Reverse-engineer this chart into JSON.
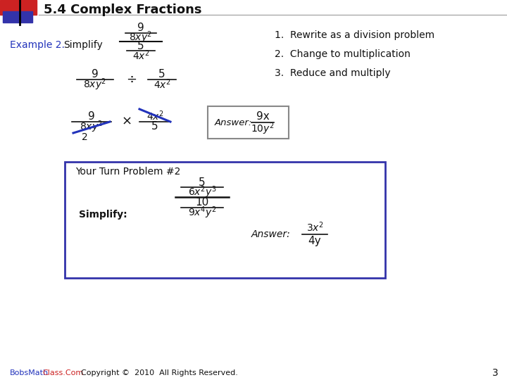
{
  "title": "5.4 Complex Fractions",
  "slide_bg": "#ffffff",
  "steps": [
    "1.  Rewrite as a division problem",
    "2.  Change to multiplication",
    "3.  Reduce and multiply"
  ],
  "footer_blue": "BobsMath",
  "footer_red": "Class.Com",
  "footer_black": "  Copyright ©  2010  All Rights Reserved.",
  "page_number": "3",
  "box_color": "#3333aa",
  "header_red": "#cc2222",
  "header_blue": "#3333aa",
  "text_color": "#111111",
  "cancel_color": "#2233bb",
  "example_color": "#2233bb"
}
